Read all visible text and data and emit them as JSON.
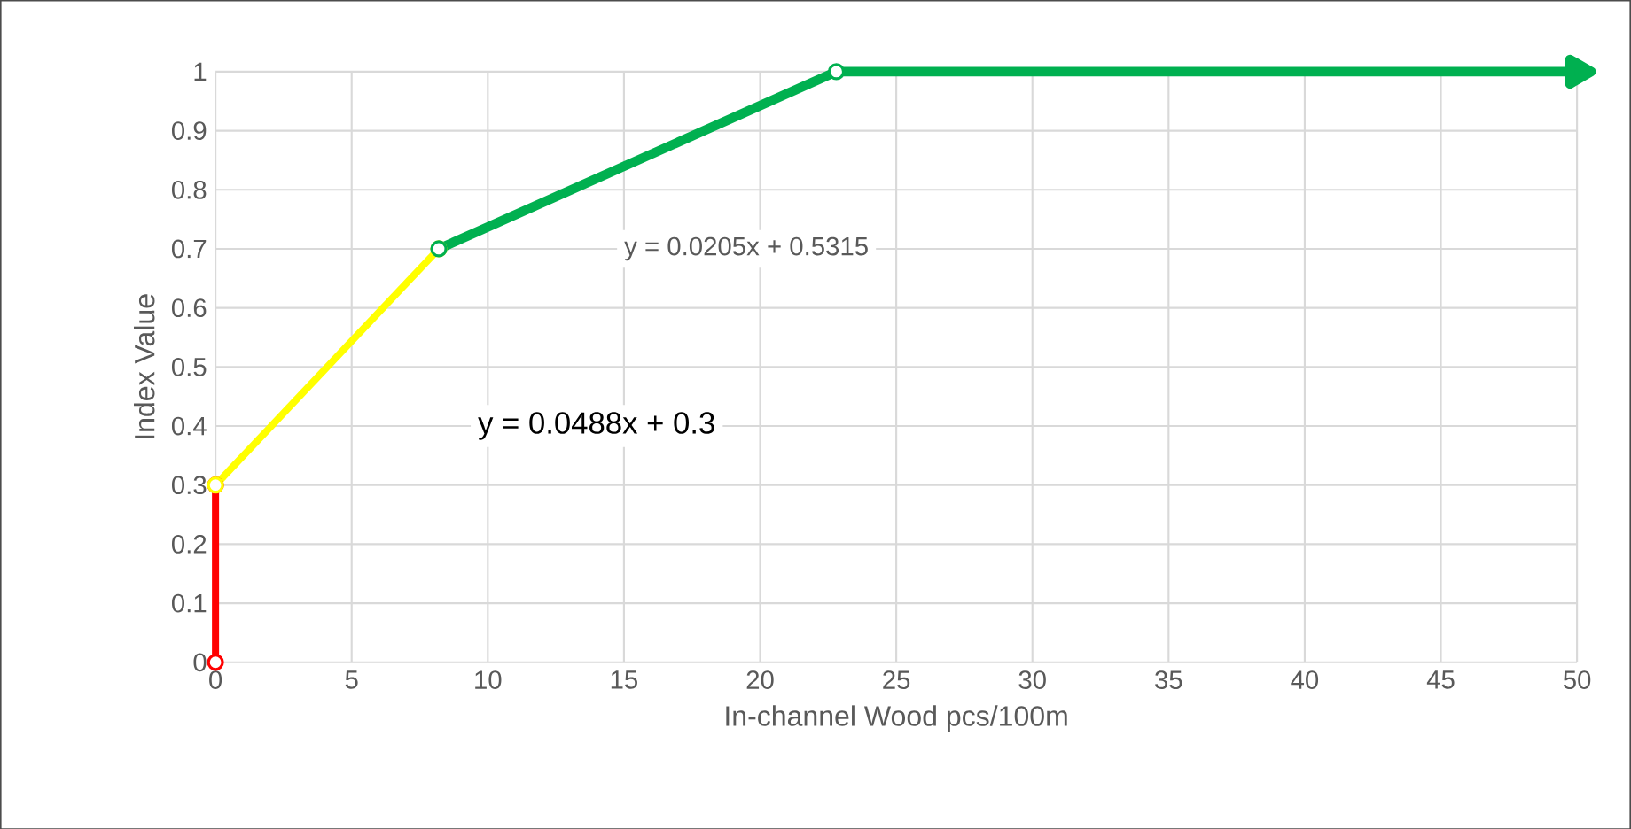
{
  "chart_data": {
    "type": "line",
    "xlabel": "In-channel Wood pcs/100m",
    "ylabel": "Index Value",
    "xlim": [
      0,
      50
    ],
    "xticks": [
      0,
      5,
      10,
      15,
      20,
      25,
      30,
      35,
      40,
      45,
      50
    ],
    "ylim": [
      0,
      1
    ],
    "yticks": [
      0,
      0.1,
      0.2,
      0.3,
      0.4,
      0.5,
      0.6,
      0.7,
      0.8,
      0.9,
      1
    ],
    "grid": true,
    "marker": "circle",
    "line_style": "solid",
    "series": [
      {
        "color": "#ff0000",
        "x": [
          0,
          0
        ],
        "values": [
          0,
          0.3
        ]
      },
      {
        "color": "#ffff00",
        "x": [
          0,
          8.2
        ],
        "values": [
          0.3,
          0.7
        ]
      },
      {
        "color": "#00b050",
        "x": [
          8.2,
          22.8
        ],
        "values": [
          0.7,
          1
        ]
      },
      {
        "color": "#00b050",
        "x": [
          22.8,
          50
        ],
        "values": [
          1,
          1
        ],
        "marker": "triangle"
      }
    ],
    "annotations": [
      "y = 0.0205x + 0.5315",
      "y = 0.0488x + 0.3"
    ]
  }
}
